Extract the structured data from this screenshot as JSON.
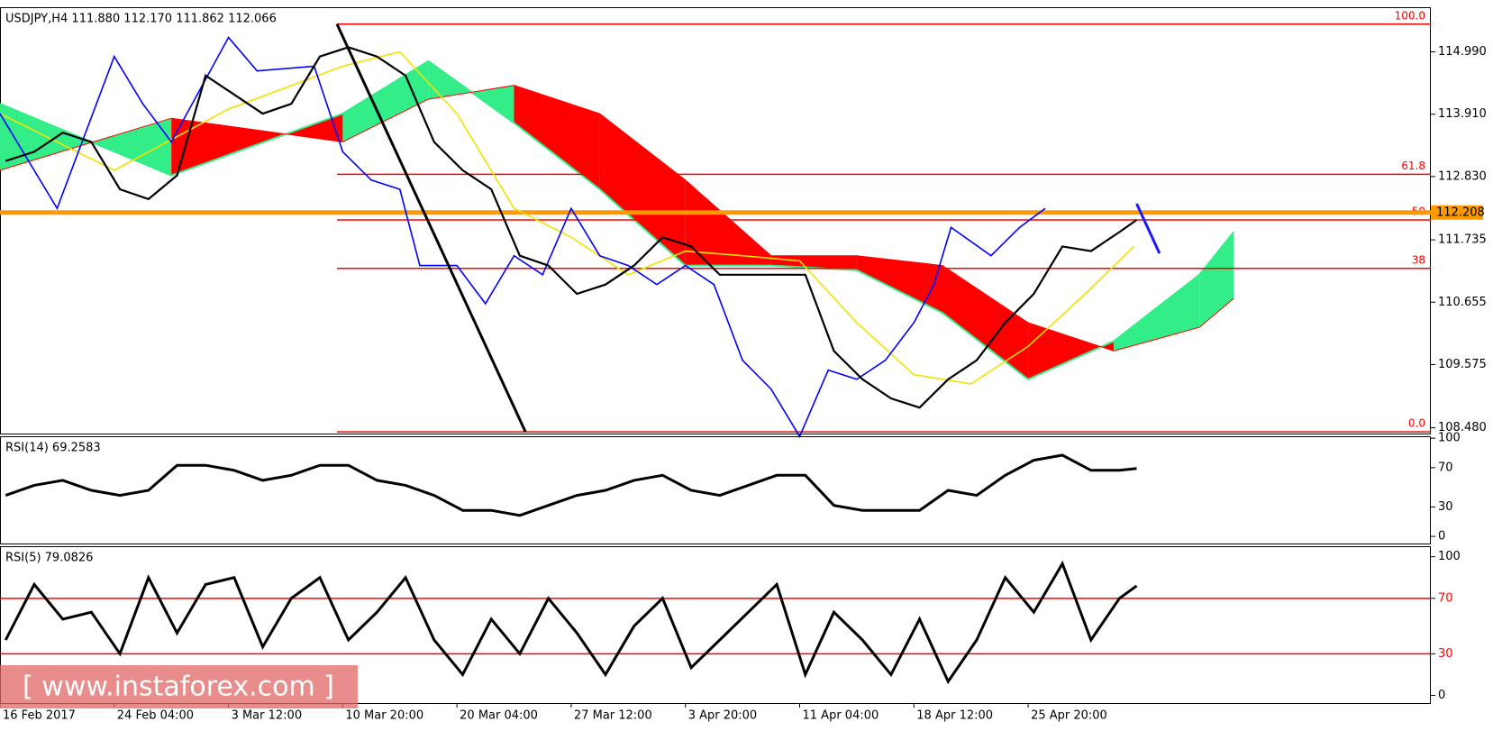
{
  "chart_data": [
    {
      "type": "line",
      "title": "USDJPY,H4  111.880 112.170 111.862 112.066",
      "xlim": [
        0,
        501
      ],
      "ylim": [
        108.365,
        115.763
      ],
      "yticks": [
        {
          "value": 114.99,
          "label": "114.990"
        },
        {
          "value": 113.91,
          "label": "113.910"
        },
        {
          "value": 112.83,
          "label": "112.830"
        },
        111.735,
        110.655,
        109.575,
        {
          "value": 108.48,
          "label": "108.480"
        }
      ],
      "cloud": {
        "x": [
          0,
          60,
          120,
          150,
          180,
          210,
          240,
          270,
          300,
          330,
          360,
          390,
          420,
          432
        ],
        "span_a": [
          114.09,
          112.85,
          113.92,
          114.83,
          113.76,
          112.61,
          111.29,
          111.29,
          111.21,
          110.47,
          109.32,
          109.98,
          111.13,
          111.87
        ],
        "span_b": [
          112.94,
          113.84,
          113.43,
          114.17,
          114.41,
          113.92,
          112.77,
          111.46,
          111.46,
          111.29,
          110.3,
          109.81,
          110.22,
          110.72
        ],
        "up_color": "#33ee88",
        "down_color": "#ff0000"
      },
      "levels": [
        {
          "value": 115.47,
          "label": "100.0"
        },
        {
          "value": 112.87,
          "label": "61.8"
        },
        {
          "value": 112.08,
          "label": "50"
        },
        {
          "value": 111.24,
          "label": "38"
        },
        {
          "value": 108.41,
          "label": "0.0"
        }
      ],
      "level_color": "#ff0000",
      "hline": {
        "value": 112.208,
        "color": "#ff9900"
      },
      "series": [
        {
          "color": "#f2e200",
          "x": [
            0,
            40,
            80,
            120,
            140,
            160,
            180,
            200,
            220,
            240,
            260,
            280,
            300,
            320,
            340,
            360,
            380,
            397
          ],
          "values": [
            113.92,
            112.94,
            114.0,
            114.74,
            114.99,
            113.92,
            112.28,
            111.78,
            111.13,
            111.54,
            111.46,
            111.37,
            110.3,
            109.4,
            109.24,
            109.89,
            110.8,
            111.62
          ]
        },
        {
          "color": "#0000ff",
          "x": [
            0,
            20,
            40,
            50,
            60,
            80,
            90,
            110,
            120,
            130,
            140,
            147,
            160,
            170,
            180,
            190,
            200,
            210,
            220,
            230,
            240,
            250,
            260,
            270,
            280,
            290,
            300,
            310,
            320,
            327,
            333,
            347,
            357,
            366
          ],
          "values": [
            113.92,
            112.28,
            114.91,
            114.09,
            113.43,
            115.24,
            114.66,
            114.74,
            113.26,
            112.77,
            112.61,
            111.29,
            111.29,
            110.63,
            111.46,
            111.13,
            112.28,
            111.46,
            111.29,
            110.96,
            111.29,
            110.96,
            109.65,
            109.15,
            108.33,
            109.48,
            109.32,
            109.65,
            110.3,
            110.96,
            111.95,
            111.46,
            111.95,
            112.28
          ]
        },
        {
          "color": "#000000",
          "x": [
            2,
            12,
            22,
            32,
            42,
            52,
            62,
            72,
            82,
            92,
            102,
            112,
            122,
            132,
            142,
            152,
            162,
            172,
            182,
            192,
            202,
            212,
            222,
            232,
            242,
            252,
            262,
            272,
            282,
            292,
            302,
            312,
            322,
            332,
            342,
            352,
            362,
            372,
            382,
            392,
            398
          ],
          "values": [
            113.1,
            113.26,
            113.59,
            113.43,
            112.61,
            112.44,
            112.85,
            114.58,
            114.25,
            113.92,
            114.09,
            114.91,
            115.07,
            114.91,
            114.58,
            113.43,
            112.94,
            112.61,
            111.46,
            111.29,
            110.8,
            110.96,
            111.29,
            111.78,
            111.62,
            111.13,
            111.13,
            111.13,
            111.13,
            109.81,
            109.32,
            108.99,
            108.83,
            109.32,
            109.65,
            110.3,
            110.8,
            111.62,
            111.54,
            111.87,
            112.08
          ]
        }
      ],
      "trendline": {
        "x": [
          118,
          184
        ],
        "values": [
          115.47,
          108.41
        ],
        "color": "#000000"
      },
      "arrow": {
        "x": [
          398,
          406
        ],
        "values": [
          112.36,
          111.5
        ],
        "color": "#1a1aff"
      }
    },
    {
      "type": "line",
      "title": "RSI(14) 69.2583",
      "xlim": [
        0,
        501
      ],
      "ylim": [
        -8.2,
        102
      ],
      "yticks": [
        0,
        30,
        70,
        100
      ],
      "color": "#000000",
      "x": [
        2,
        12,
        22,
        32,
        42,
        52,
        62,
        72,
        82,
        92,
        102,
        112,
        122,
        132,
        142,
        152,
        162,
        172,
        182,
        192,
        202,
        212,
        222,
        232,
        242,
        252,
        262,
        272,
        282,
        292,
        302,
        312,
        322,
        332,
        342,
        352,
        362,
        372,
        382,
        392,
        398
      ],
      "values": [
        41.8,
        52.0,
        57.1,
        46.9,
        41.8,
        46.9,
        72.4,
        72.4,
        67.3,
        57.1,
        62.2,
        72.4,
        72.4,
        57.1,
        52.0,
        41.8,
        26.5,
        26.5,
        21.4,
        31.6,
        41.8,
        46.9,
        57.1,
        62.2,
        46.9,
        41.8,
        52.0,
        62.2,
        62.2,
        31.6,
        26.5,
        26.5,
        26.5,
        46.9,
        41.8,
        62.2,
        77.6,
        82.7,
        67.3,
        67.3,
        69.26
      ]
    },
    {
      "type": "line",
      "title": "RSI(5) 79.0826",
      "xlim": [
        0,
        501
      ],
      "ylim": [
        -6.2,
        107.6
      ],
      "yticks": [
        0,
        30,
        70,
        100
      ],
      "levels": [
        70,
        30
      ],
      "level_color": "#ff0000",
      "color": "#000000",
      "x": [
        2,
        12,
        22,
        32,
        42,
        52,
        62,
        72,
        82,
        92,
        102,
        112,
        122,
        132,
        142,
        152,
        162,
        172,
        182,
        192,
        202,
        212,
        222,
        232,
        242,
        252,
        262,
        272,
        282,
        292,
        302,
        312,
        322,
        332,
        342,
        352,
        362,
        372,
        382,
        392,
        398
      ],
      "values": [
        40,
        80,
        55,
        60,
        30,
        85,
        45,
        80,
        85,
        35,
        70,
        85,
        40,
        60,
        85,
        40,
        15,
        55,
        30,
        70,
        45,
        15,
        50,
        70,
        20,
        40,
        60,
        80,
        15,
        60,
        40,
        15,
        55,
        10,
        40,
        85,
        60,
        95,
        40,
        70,
        79.08
      ],
      "xticks": [
        {
          "value": 0,
          "label": "16 Feb 2017"
        },
        {
          "value": 40,
          "label": "24 Feb 04:00"
        },
        {
          "value": 80,
          "label": "3 Mar 12:00"
        },
        {
          "value": 120,
          "label": "10 Mar 20:00"
        },
        {
          "value": 160,
          "label": "20 Mar 04:00"
        },
        {
          "value": 200,
          "label": "27 Mar 12:00"
        },
        {
          "value": 240,
          "label": "3 Apr 20:00"
        },
        {
          "value": 280,
          "label": "11 Apr 04:00"
        },
        {
          "value": 320,
          "label": "18 Apr 12:00"
        },
        {
          "value": 360,
          "label": "25 Apr 20:00"
        }
      ]
    }
  ],
  "watermark": "[ www.instaforex.com ]"
}
